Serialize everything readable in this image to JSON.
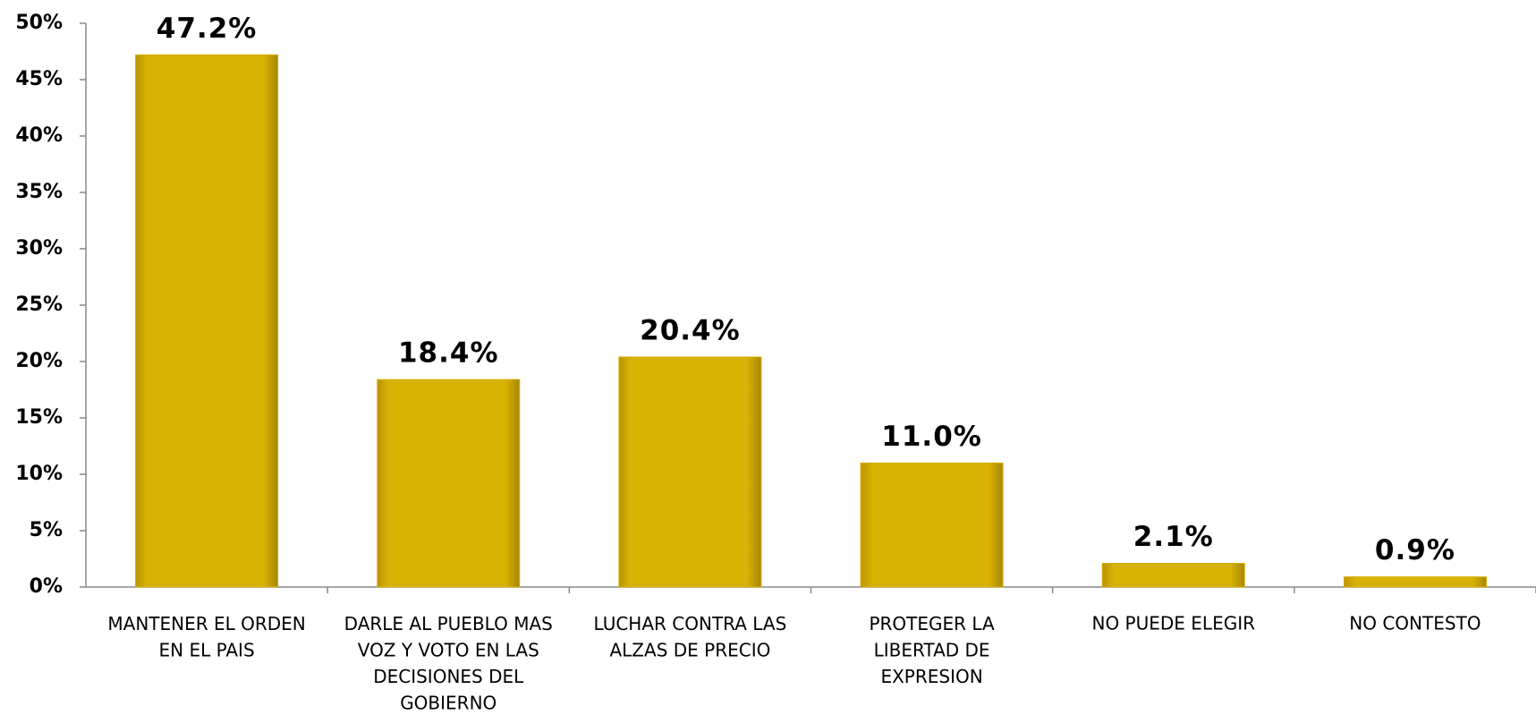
{
  "chart_data": {
    "type": "bar",
    "categories": [
      "MANTENER EL ORDEN\nEN EL PAIS",
      "DARLE AL PUEBLO  MAS\nVOZ Y VOTO EN LAS\nDECISIONES DEL\nGOBIERNO",
      "LUCHAR CONTRA LAS\nALZAS DE PRECIO",
      "PROTEGER LA\nLIBERTAD DE\nEXPRESION",
      "NO PUEDE ELEGIR",
      "NO CONTESTO"
    ],
    "values": [
      47.2,
      18.4,
      20.4,
      11.0,
      2.1,
      0.9
    ],
    "value_labels": [
      "47.2%",
      "18.4%",
      "20.4%",
      "11.0%",
      "2.1%",
      "0.9%"
    ],
    "color": "#d4ae06",
    "ylim": [
      0,
      50
    ],
    "yticks": [
      {
        "value": 0,
        "label": "0%"
      },
      {
        "value": 5,
        "label": "5%"
      },
      {
        "value": 10,
        "label": "10%"
      },
      {
        "value": 15,
        "label": "15%"
      },
      {
        "value": 20,
        "label": "20%"
      },
      {
        "value": 25,
        "label": "25%"
      },
      {
        "value": 30,
        "label": "30%"
      },
      {
        "value": 35,
        "label": "35%"
      },
      {
        "value": 40,
        "label": "40%"
      },
      {
        "value": 45,
        "label": "45%"
      },
      {
        "value": 50,
        "label": "50%"
      }
    ],
    "grid": false
  }
}
